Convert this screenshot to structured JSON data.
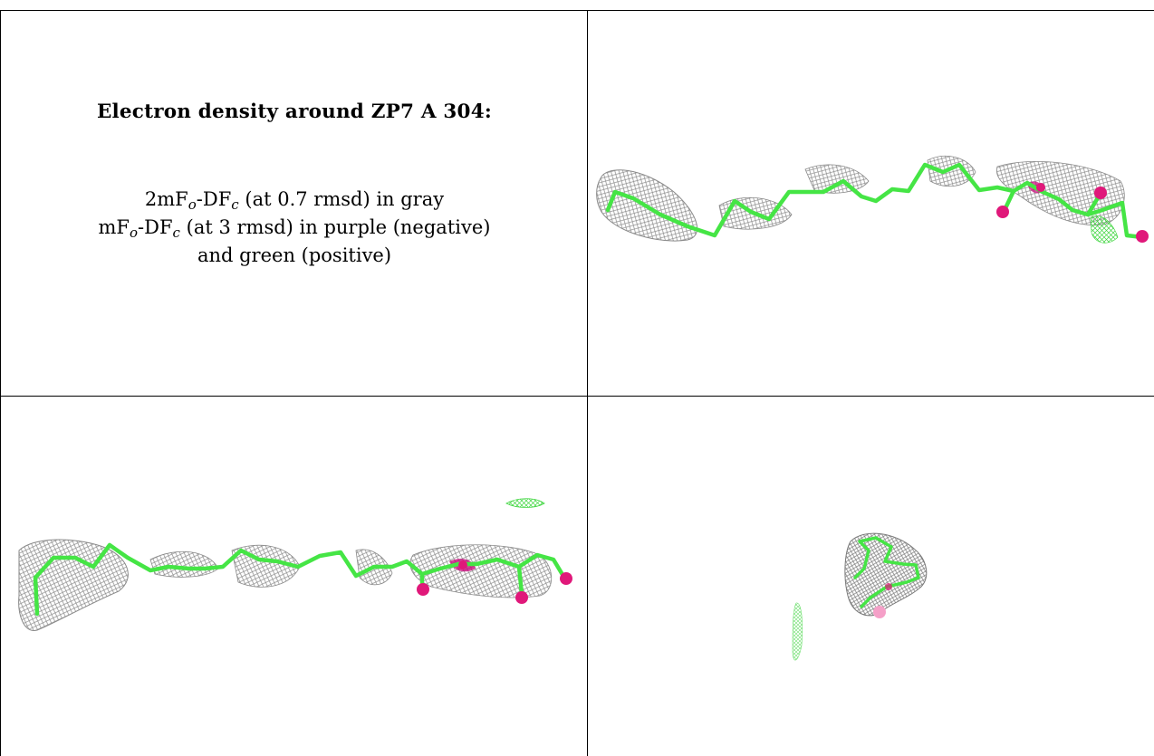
{
  "caption": {
    "title": "Electron density around ZP7 A 304:",
    "line1": {
      "pre": "2mF",
      "sub1": "o",
      "mid": "-DF",
      "sub2": "c",
      "post": " (at 0.7 rmsd) in gray"
    },
    "line2": {
      "pre": "mF",
      "sub1": "o",
      "mid": "-DF",
      "sub2": "c",
      "post": " (at 3 rmsd) in purple (negative)"
    },
    "line3": "and green (positive)"
  },
  "colors": {
    "mesh_2fofc": "#8a8a8a",
    "model_carbon": "#45e545",
    "model_oxygen": "#e0187a",
    "mesh_positive": "#3fd63f",
    "mesh_negative": "#c80078"
  },
  "panels": {
    "top_right": "ligand-density-view-1",
    "bottom_left": "ligand-density-view-2",
    "bottom_right": "ligand-density-view-3"
  }
}
